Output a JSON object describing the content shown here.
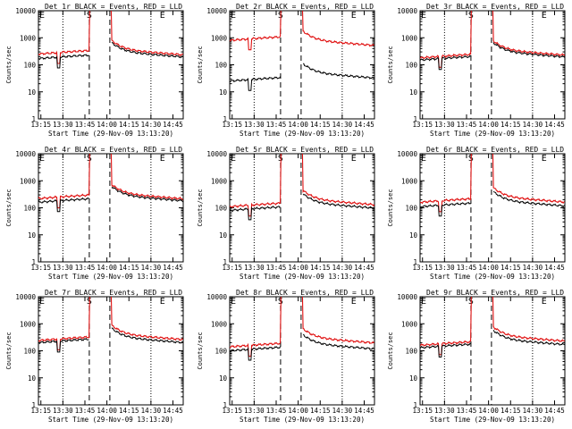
{
  "chart_data": {
    "type": "line",
    "y_scale": "log",
    "ylim": [
      1,
      10000
    ],
    "y_ticks": [
      "1",
      "10",
      "100",
      "1000",
      "10000"
    ],
    "ylabel": "Counts/sec",
    "x_ticks": [
      "13:15",
      "13:30",
      "13:45",
      "14:00",
      "14:15",
      "14:30",
      "14:45"
    ],
    "xlabel": "Start Time (29-Nov-09 13:13:20)",
    "markers": {
      "start": "S",
      "end": "E",
      "rising_left": "E"
    },
    "legend_text": "BLACK = Events, RED = LLD",
    "panels": [
      {
        "title": "Det 1r BLACK = Events, RED = LLD",
        "events_base": 170,
        "lld_base": 250,
        "events_after": 300,
        "lld_after": 360,
        "dip": true
      },
      {
        "title": "Det 2r BLACK = Events, RED = LLD",
        "events_base": 25,
        "lld_base": 800,
        "events_after": 50,
        "lld_after": 800,
        "dip": true
      },
      {
        "title": "Det 3r BLACK = Events, RED = LLD",
        "events_base": 150,
        "lld_base": 180,
        "events_after": 300,
        "lld_after": 350,
        "dip": true
      },
      {
        "title": "Det 4r BLACK = Events, RED = LLD",
        "events_base": 160,
        "lld_base": 220,
        "events_after": 280,
        "lld_after": 330,
        "dip": true
      },
      {
        "title": "Det 5r BLACK = Events, RED = LLD",
        "events_base": 80,
        "lld_base": 110,
        "events_after": 150,
        "lld_after": 200,
        "dip": true
      },
      {
        "title": "Det 6r BLACK = Events, RED = LLD",
        "events_base": 110,
        "lld_base": 160,
        "events_after": 180,
        "lld_after": 250,
        "dip": true
      },
      {
        "title": "Det 7r BLACK = Events, RED = LLD",
        "events_base": 200,
        "lld_base": 240,
        "events_after": 310,
        "lld_after": 400,
        "dip": true
      },
      {
        "title": "Det 8r BLACK = Events, RED = LLD",
        "events_base": 100,
        "lld_base": 140,
        "events_after": 180,
        "lld_after": 300,
        "dip": true
      },
      {
        "title": "Det 9r BLACK = Events, RED = LLD",
        "events_base": 130,
        "lld_base": 160,
        "events_after": 260,
        "lld_after": 350,
        "dip": true
      }
    ]
  }
}
